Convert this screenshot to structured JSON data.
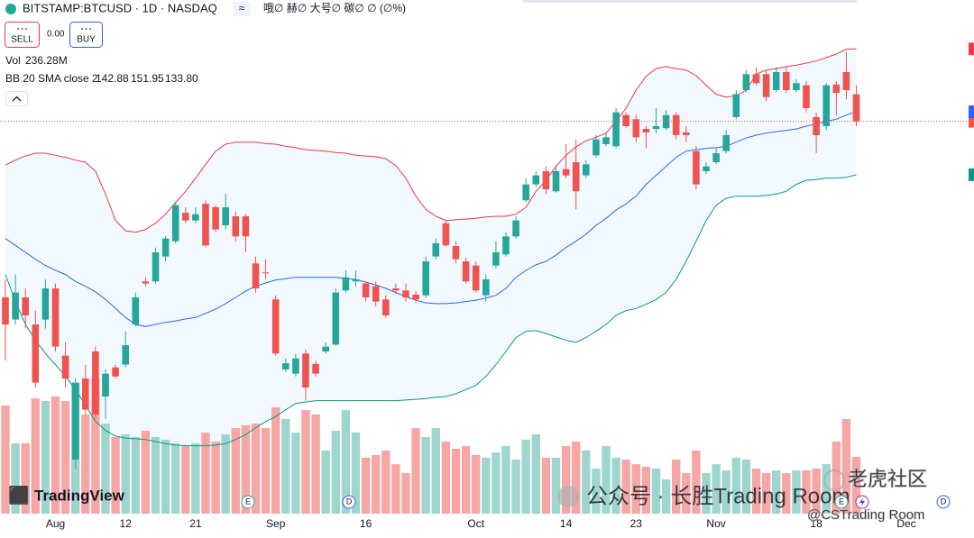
{
  "header": {
    "symbol": "BITSTAMP:BTCUSD · 1D · NASDAQ",
    "toolbar": "哦∅ 赫∅ 大号∅ 碳∅ ∅ (∅%)",
    "sell": "SELL",
    "spread": "0.00",
    "buy": "BUY"
  },
  "watermarks": {
    "brand": "TradingView",
    "wechat": "公众号 · 长胜Trading Room",
    "tiger": "老虎社区",
    "handle": "@CSTrading Room"
  },
  "events": [
    "E",
    "D",
    "E",
    "D"
  ],
  "chart_data": {
    "type": "candlestick",
    "categories": [
      null,
      null,
      null,
      null,
      null,
      "Aug",
      null,
      null,
      null,
      null,
      null,
      null,
      "12",
      null,
      null,
      null,
      null,
      null,
      null,
      "21",
      null,
      null,
      null,
      null,
      null,
      null,
      null,
      "Sep",
      null,
      null,
      null,
      null,
      null,
      null,
      null,
      null,
      "16",
      null,
      null,
      null,
      null,
      null,
      null,
      null,
      null,
      null,
      null,
      "Oct",
      null,
      null,
      null,
      null,
      null,
      null,
      null,
      null,
      "14",
      null,
      null,
      null,
      null,
      null,
      null,
      "23",
      null,
      null,
      null,
      null,
      null,
      null,
      null,
      "Nov",
      null,
      null,
      null,
      null,
      null,
      null,
      null,
      null,
      null,
      "18",
      null,
      null,
      null,
      null,
      null,
      null,
      null,
      null,
      "Dec"
    ],
    "open": [
      116.1,
      112.9,
      116.1,
      112.2,
      112.9,
      117.4,
      107.7,
      92.7,
      104.4,
      108.3,
      101.8,
      106.0,
      106.4,
      112.2,
      118.4,
      118.4,
      122.0,
      124.2,
      128.3,
      127.2,
      129.6,
      129.1,
      126.5,
      127.8,
      127.8,
      121.0,
      119.7,
      115.8,
      105.7,
      105.1,
      108.0,
      106.5,
      108.3,
      109.3,
      117.1,
      118.4,
      118.1,
      117.7,
      115.8,
      117.4,
      117.1,
      116.5,
      116.4,
      122.0,
      126.8,
      123.5,
      121.3,
      120.7,
      116.4,
      120.7,
      122.3,
      124.9,
      130.1,
      132.4,
      134.3,
      131.4,
      134.6,
      135.6,
      133.7,
      136.6,
      138.2,
      137.9,
      142.4,
      141.8,
      140.4,
      140.4,
      140.5,
      142.4,
      139.9,
      137.2,
      134.3,
      135.6,
      137.2,
      142.1,
      146.0,
      148.3,
      148.3,
      146.0,
      148.6,
      146.0,
      146.7,
      142.1,
      140.8,
      146.8,
      148.6,
      145.4,
      null,
      null,
      null,
      null,
      null
    ],
    "high": [
      118.7,
      119.4,
      117.4,
      114.2,
      118.7,
      118.1,
      109.6,
      104.4,
      106.4,
      109.0,
      105.7,
      106.4,
      111.2,
      116.8,
      119.0,
      123.3,
      124.9,
      129.8,
      129.1,
      129.1,
      130.1,
      129.4,
      131.0,
      128.5,
      128.1,
      122.0,
      121.6,
      116.4,
      107.3,
      108.0,
      108.6,
      107.0,
      109.6,
      117.4,
      120.0,
      120.0,
      118.4,
      118.4,
      116.4,
      118.1,
      118.1,
      117.0,
      122.0,
      124.6,
      127.2,
      124.2,
      121.8,
      121.3,
      119.4,
      124.2,
      125.5,
      127.8,
      133.3,
      134.3,
      135.0,
      135.0,
      138.2,
      138.9,
      135.9,
      139.5,
      139.8,
      143.4,
      142.8,
      142.4,
      140.8,
      143.4,
      143.1,
      142.8,
      140.8,
      137.9,
      135.6,
      137.6,
      140.2,
      146.0,
      148.9,
      149.3,
      148.9,
      149.3,
      149.3,
      147.6,
      147.3,
      142.8,
      147.0,
      147.3,
      151.5,
      146.7,
      null,
      null,
      null,
      null,
      null
    ],
    "low": [
      107.0,
      112.2,
      111.6,
      103.1,
      111.6,
      108.3,
      103.1,
      91.4,
      99.2,
      98.6,
      98.6,
      104.4,
      106.0,
      111.9,
      117.7,
      118.1,
      121.3,
      123.9,
      126.8,
      126.8,
      123.3,
      125.5,
      125.9,
      124.2,
      122.6,
      116.8,
      118.7,
      107.7,
      105.4,
      104.7,
      101.2,
      104.7,
      108.0,
      109.1,
      116.8,
      117.7,
      115.5,
      114.8,
      113.2,
      116.6,
      115.5,
      115.3,
      116.1,
      121.6,
      123.4,
      121.0,
      118.1,
      116.8,
      115.5,
      120.3,
      122.0,
      124.6,
      129.8,
      132.0,
      131.0,
      131.2,
      133.3,
      128.8,
      133.3,
      136.3,
      137.9,
      137.6,
      140.5,
      138.5,
      137.6,
      139.8,
      140.2,
      138.9,
      138.5,
      131.7,
      133.9,
      135.3,
      136.9,
      141.8,
      145.7,
      146.7,
      144.4,
      145.7,
      145.6,
      145.7,
      142.8,
      136.9,
      140.2,
      142.4,
      144.7,
      140.8,
      null,
      null,
      null,
      null,
      null
    ],
    "close": [
      112.2,
      116.8,
      113.5,
      103.8,
      117.4,
      109.0,
      104.4,
      103.8,
      99.9,
      99.2,
      105.1,
      104.7,
      109.2,
      116.1,
      118.1,
      122.6,
      124.6,
      129.4,
      127.2,
      128.1,
      123.6,
      125.9,
      129.1,
      124.9,
      124.9,
      117.4,
      119.6,
      108.0,
      106.6,
      107.3,
      103.1,
      105.1,
      109.0,
      116.8,
      119.0,
      118.7,
      116.1,
      115.5,
      113.5,
      117.1,
      116.1,
      115.8,
      121.3,
      123.9,
      123.6,
      121.6,
      118.4,
      117.1,
      118.7,
      122.6,
      124.9,
      127.2,
      132.4,
      133.7,
      131.7,
      134.3,
      133.7,
      131.4,
      135.3,
      138.9,
      139.2,
      142.8,
      140.8,
      139.2,
      139.9,
      140.8,
      142.4,
      139.5,
      139.5,
      132.4,
      135.0,
      136.9,
      139.5,
      145.4,
      148.3,
      147.0,
      145.0,
      148.6,
      146.0,
      147.0,
      143.4,
      139.5,
      146.7,
      145.6,
      146.0,
      141.5,
      null,
      null,
      null,
      null,
      null
    ],
    "volume": [
      450,
      293,
      293,
      480,
      469,
      488,
      469,
      544,
      413,
      563,
      375,
      319,
      330,
      319,
      345,
      319,
      308,
      293,
      281,
      293,
      338,
      300,
      330,
      356,
      368,
      375,
      356,
      443,
      394,
      338,
      431,
      413,
      263,
      345,
      431,
      338,
      233,
      244,
      263,
      206,
      169,
      356,
      319,
      356,
      300,
      270,
      281,
      244,
      233,
      255,
      281,
      225,
      308,
      330,
      233,
      233,
      281,
      300,
      263,
      188,
      281,
      233,
      225,
      206,
      195,
      188,
      143,
      225,
      169,
      263,
      169,
      206,
      180,
      233,
      225,
      188,
      169,
      180,
      169,
      180,
      180,
      188,
      206,
      300,
      394,
      236.28,
      null,
      null,
      null,
      null,
      null
    ],
    "up_color": "#26a69a",
    "down_color": "#ef5350",
    "volume_up_color": "#9ed6cf",
    "volume_down_color": "#f6a6a4",
    "ylim": [
      84.9,
      159
    ],
    "y2lim": [
      0,
      2138
    ],
    "bb": {
      "upper": [
        135.2,
        135.9,
        136.5,
        136.9,
        136.9,
        136.6,
        136.3,
        135.9,
        135.6,
        134.3,
        131.0,
        127.2,
        125.7,
        125.5,
        125.9,
        126.8,
        128.1,
        129.8,
        131.4,
        133.3,
        135.3,
        137.2,
        138.2,
        138.5,
        138.5,
        138.5,
        138.3,
        138.2,
        137.9,
        137.7,
        137.4,
        137.3,
        137.2,
        137.0,
        136.9,
        136.6,
        136.5,
        136.4,
        136.1,
        135.1,
        133.3,
        130.7,
        128.8,
        127.8,
        127.2,
        127.3,
        127.4,
        127.5,
        127.7,
        127.8,
        127.8,
        128.1,
        129.1,
        131.4,
        133.0,
        135.0,
        136.6,
        137.8,
        138.7,
        139.2,
        139.8,
        141.5,
        143.4,
        146.0,
        148.0,
        149.1,
        149.4,
        149.1,
        148.9,
        148.1,
        146.7,
        145.4,
        145.0,
        145.2,
        146.0,
        148.3,
        148.9,
        149.1,
        149.4,
        149.6,
        149.9,
        150.2,
        150.7,
        151.2,
        151.9,
        151.95,
        null,
        null,
        null,
        null,
        null
      ],
      "middle": [
        124.6,
        123.6,
        122.6,
        121.6,
        120.7,
        120.0,
        119.4,
        118.4,
        117.7,
        116.9,
        115.8,
        114.5,
        113.2,
        112.2,
        111.9,
        112.2,
        112.5,
        112.7,
        113.0,
        113.2,
        113.8,
        114.4,
        115.2,
        116.1,
        117.0,
        117.7,
        118.2,
        118.6,
        118.8,
        119.0,
        119.0,
        119.0,
        119.0,
        119.0,
        118.8,
        118.7,
        118.3,
        117.9,
        117.4,
        116.8,
        116.2,
        115.7,
        115.3,
        115.2,
        115.2,
        115.3,
        115.5,
        115.7,
        116.0,
        116.4,
        117.4,
        119.0,
        120.0,
        120.8,
        121.3,
        122.2,
        123.3,
        124.2,
        125.2,
        126.5,
        127.5,
        128.7,
        129.6,
        130.7,
        132.4,
        133.7,
        135.0,
        136.3,
        137.2,
        137.4,
        137.6,
        137.7,
        137.9,
        138.5,
        139.1,
        139.5,
        139.8,
        140.0,
        140.2,
        140.4,
        140.8,
        141.1,
        141.5,
        141.8,
        142.4,
        142.88,
        null,
        null,
        null,
        null,
        null
      ],
      "lower": [
        119.4,
        115.5,
        112.2,
        109.9,
        108.0,
        106.4,
        104.7,
        102.8,
        100.5,
        98.2,
        96.9,
        96.1,
        95.8,
        95.7,
        95.6,
        95.3,
        95.0,
        94.8,
        94.7,
        94.7,
        94.7,
        94.8,
        95.0,
        95.6,
        96.3,
        97.3,
        98.2,
        98.9,
        99.9,
        100.8,
        101.0,
        101.2,
        101.2,
        101.2,
        101.2,
        101.2,
        101.2,
        101.2,
        101.2,
        101.2,
        101.3,
        101.4,
        101.5,
        101.7,
        101.8,
        102.2,
        102.8,
        103.4,
        104.7,
        106.4,
        108.3,
        110.3,
        111.2,
        111.3,
        110.9,
        110.4,
        109.9,
        109.6,
        110.3,
        111.2,
        112.2,
        113.5,
        114.2,
        114.5,
        115.1,
        115.8,
        116.8,
        118.7,
        121.3,
        124.2,
        127.2,
        129.4,
        130.4,
        130.7,
        130.7,
        130.7,
        130.8,
        131.0,
        131.4,
        132.4,
        133.0,
        133.1,
        133.3,
        133.3,
        133.4,
        133.8,
        null,
        null,
        null,
        null,
        null
      ],
      "upper_color": "#f23645",
      "middle_color": "#2962ff",
      "lower_color": "#089981",
      "fill_color": "#2196f3"
    },
    "legend": {
      "vol": "Vol",
      "vol_value": "236.28M",
      "bb": "BB 20 SMA close 2",
      "middle": "142.88",
      "upper": "151.95",
      "lower": "133.80"
    }
  }
}
